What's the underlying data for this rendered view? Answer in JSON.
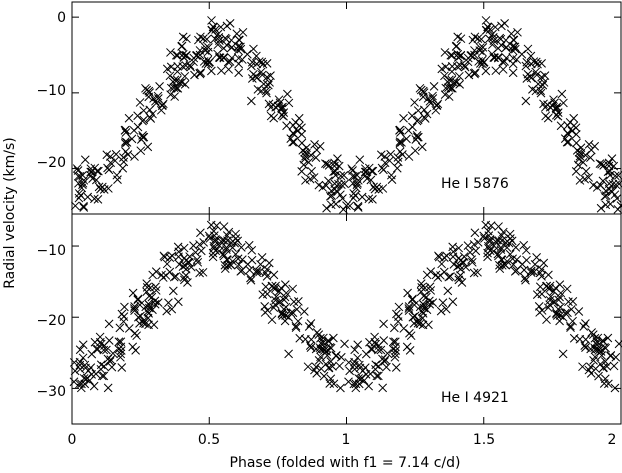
{
  "chart_data": [
    {
      "type": "scatter",
      "panel": "top",
      "annotation": "He I 5876",
      "xlim": [
        0,
        2
      ],
      "ylim": [
        -26,
        2
      ],
      "yticks": [
        0,
        -10,
        -20
      ],
      "marker": "x",
      "grid": false,
      "model": {
        "mean": -13.0,
        "amplitude": 9.5,
        "peak_phase": 0.52,
        "scatter": 2.3,
        "points_per_cycle": 300
      },
      "points_sample": [
        [
          0.0,
          -22.5
        ],
        [
          0.05,
          -22.0
        ],
        [
          0.1,
          -20.0
        ],
        [
          0.15,
          -17.5
        ],
        [
          0.2,
          -15.0
        ],
        [
          0.25,
          -12.0
        ],
        [
          0.3,
          -9.0
        ],
        [
          0.35,
          -7.0
        ],
        [
          0.4,
          -5.0
        ],
        [
          0.45,
          -3.5
        ],
        [
          0.5,
          -3.0
        ],
        [
          0.55,
          -3.0
        ],
        [
          0.6,
          -4.5
        ],
        [
          0.65,
          -7.0
        ],
        [
          0.7,
          -10.0
        ],
        [
          0.75,
          -13.0
        ],
        [
          0.8,
          -16.0
        ],
        [
          0.85,
          -19.0
        ],
        [
          0.9,
          -21.0
        ],
        [
          0.95,
          -22.5
        ],
        [
          1.0,
          -22.5
        ],
        [
          1.05,
          -21.5
        ],
        [
          1.1,
          -19.5
        ],
        [
          1.2,
          -15.0
        ],
        [
          1.3,
          -9.5
        ],
        [
          1.4,
          -5.5
        ],
        [
          1.5,
          -3.5
        ],
        [
          1.55,
          -3.0
        ],
        [
          1.6,
          -4.5
        ],
        [
          1.7,
          -9.0
        ],
        [
          1.8,
          -15.5
        ],
        [
          1.9,
          -20.5
        ],
        [
          2.0,
          -22.0
        ]
      ]
    },
    {
      "type": "scatter",
      "panel": "bottom",
      "annotation": "He I 4921",
      "xlim": [
        0,
        2
      ],
      "ylim": [
        -35,
        -5.5
      ],
      "yticks": [
        -10,
        -20,
        -30
      ],
      "xticks": [
        0,
        0.5,
        1,
        1.5,
        2
      ],
      "marker": "x",
      "grid": false,
      "model": {
        "mean": -18.5,
        "amplitude": 8.5,
        "peak_phase": 0.52,
        "scatter": 2.5,
        "points_per_cycle": 300
      },
      "points_sample": [
        [
          0.0,
          -27.0
        ],
        [
          0.05,
          -26.5
        ],
        [
          0.1,
          -25.0
        ],
        [
          0.15,
          -23.0
        ],
        [
          0.2,
          -20.0
        ],
        [
          0.25,
          -17.5
        ],
        [
          0.3,
          -15.0
        ],
        [
          0.35,
          -13.0
        ],
        [
          0.4,
          -11.5
        ],
        [
          0.45,
          -10.5
        ],
        [
          0.5,
          -10.0
        ],
        [
          0.55,
          -10.0
        ],
        [
          0.6,
          -11.0
        ],
        [
          0.65,
          -13.0
        ],
        [
          0.7,
          -16.0
        ],
        [
          0.75,
          -19.0
        ],
        [
          0.8,
          -21.5
        ],
        [
          0.85,
          -24.0
        ],
        [
          0.9,
          -25.5
        ],
        [
          0.95,
          -26.5
        ],
        [
          1.0,
          -27.0
        ],
        [
          1.05,
          -26.5
        ],
        [
          1.1,
          -25.0
        ],
        [
          1.2,
          -20.0
        ],
        [
          1.3,
          -15.0
        ],
        [
          1.4,
          -11.5
        ],
        [
          1.5,
          -10.0
        ],
        [
          1.55,
          -10.0
        ],
        [
          1.6,
          -11.0
        ],
        [
          1.7,
          -16.0
        ],
        [
          1.8,
          -21.5
        ],
        [
          1.9,
          -25.5
        ],
        [
          2.0,
          -27.0
        ]
      ]
    }
  ],
  "labels": {
    "xlabel": "Phase (folded with f1 = 7.14 c/d)",
    "ylabel": "Radial velocity (km/s)",
    "xtick_labels": [
      "0",
      "0.5",
      "1",
      "1.5",
      "2"
    ],
    "top_ytick_labels": [
      "0",
      "−10",
      "−20"
    ],
    "bottom_ytick_labels": [
      "−10",
      "−20",
      "−30"
    ],
    "top_annotation": "He I 5876",
    "bottom_annotation": "He I 4921"
  }
}
